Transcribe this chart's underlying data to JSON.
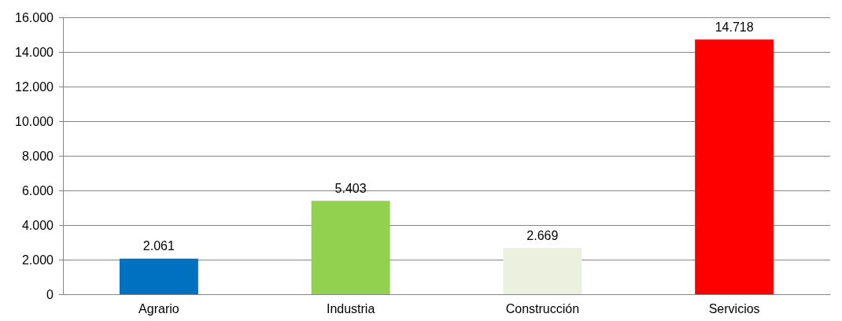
{
  "chart_data": {
    "type": "bar",
    "categories": [
      "Agrario",
      "Industria",
      "Construcción",
      "Servicios"
    ],
    "values": [
      2061,
      5403,
      2669,
      14718
    ],
    "colors": [
      "#0070c0",
      "#92d050",
      "#ebf1de",
      "#ff0000"
    ],
    "value_labels": [
      "2.061",
      "5.403",
      "2.669",
      "14.718"
    ],
    "ylim": [
      0,
      16000
    ],
    "yticks": [
      {
        "value": 0,
        "label": "0"
      },
      {
        "value": 2000,
        "label": "2.000"
      },
      {
        "value": 4000,
        "label": "4.000"
      },
      {
        "value": 6000,
        "label": "6.000"
      },
      {
        "value": 8000,
        "label": "8.000"
      },
      {
        "value": 10000,
        "label": "10.000"
      },
      {
        "value": 12000,
        "label": "12.000"
      },
      {
        "value": 14000,
        "label": "14.000"
      },
      {
        "value": 16000,
        "label": "16.000"
      }
    ],
    "grid": "y"
  }
}
